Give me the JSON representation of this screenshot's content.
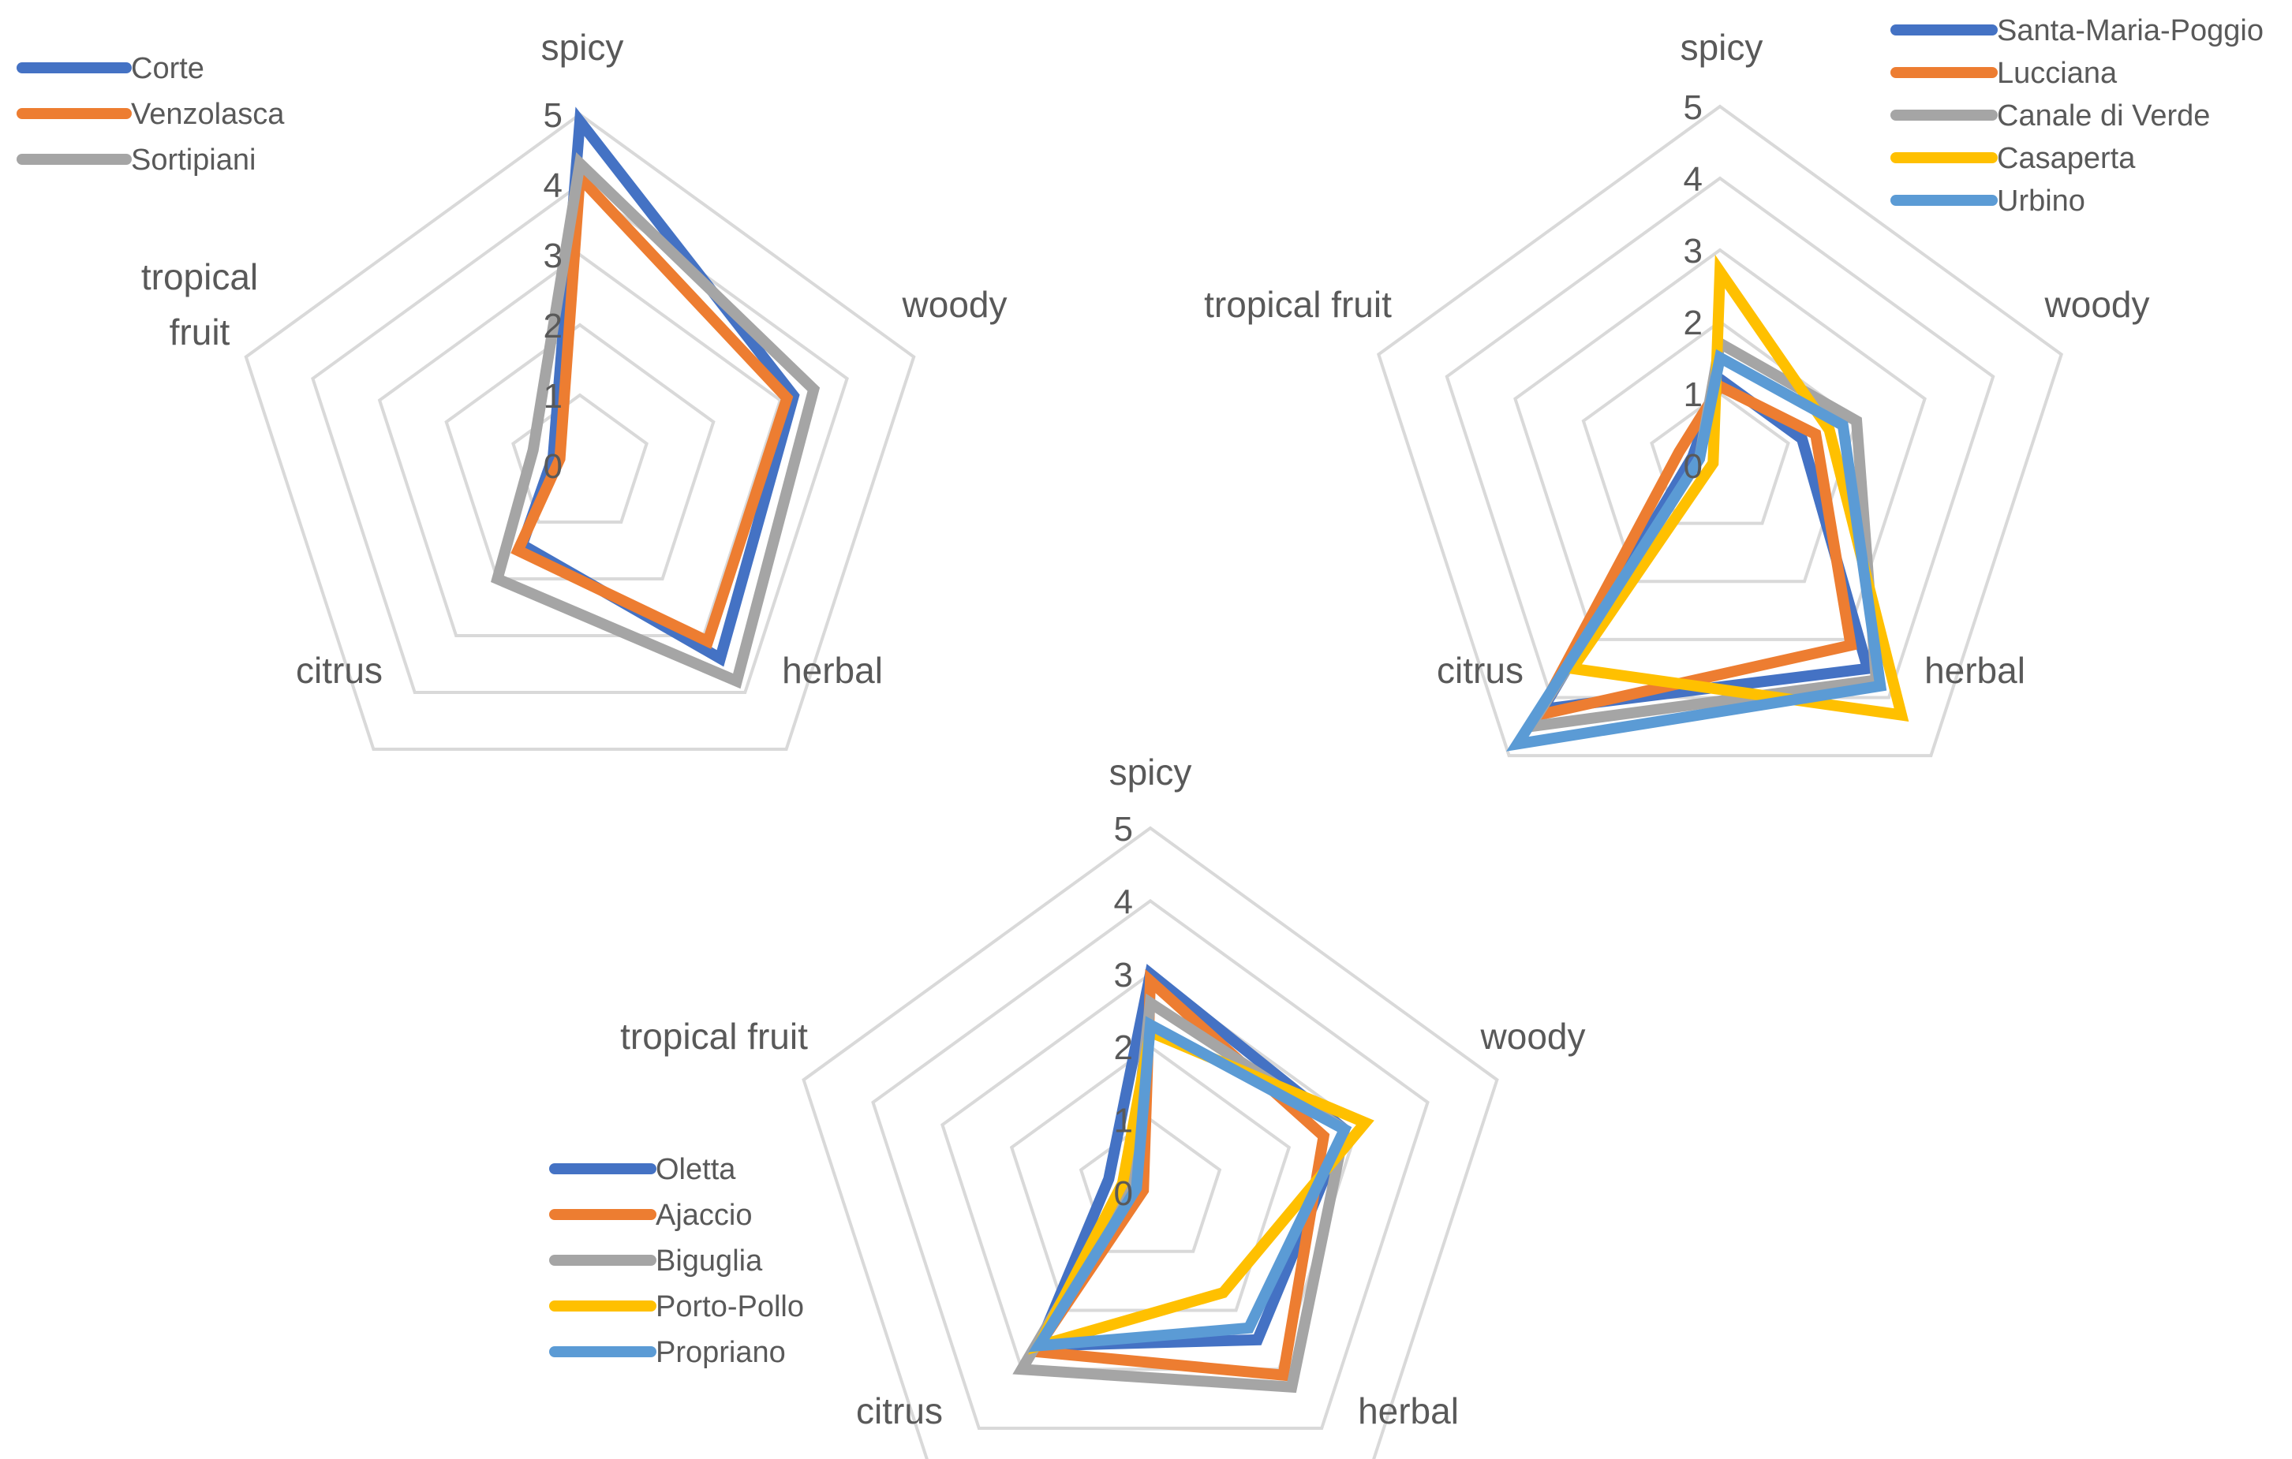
{
  "chart_data": [
    {
      "type": "radar",
      "axes": [
        "spicy",
        "woody",
        "herbal",
        "citrus",
        "tropical fruit"
      ],
      "axis_label_lines": [
        [
          "spicy"
        ],
        [
          "woody"
        ],
        [
          "herbal"
        ],
        [
          "citrus"
        ],
        [
          "tropical",
          "fruit"
        ]
      ],
      "rlim": [
        0,
        5
      ],
      "ticks": [
        "0",
        "1",
        "2",
        "3",
        "4",
        "5"
      ],
      "grid": true,
      "legend_position": "top-left",
      "series": [
        {
          "name": "Corte",
          "color": "#4472C4",
          "values": [
            4.9,
            3.2,
            3.4,
            1.4,
            0.4
          ]
        },
        {
          "name": "Venzolasca",
          "color": "#ED7D31",
          "values": [
            4.1,
            3.1,
            3.1,
            1.5,
            0.3
          ]
        },
        {
          "name": "Sortipiani",
          "color": "#A5A5A5",
          "values": [
            4.3,
            3.5,
            3.8,
            2.0,
            0.7
          ]
        }
      ]
    },
    {
      "type": "radar",
      "axes": [
        "spicy",
        "woody",
        "herbal",
        "citrus",
        "tropical fruit"
      ],
      "axis_label_lines": [
        [
          "spicy"
        ],
        [
          "woody"
        ],
        [
          "herbal"
        ],
        [
          "citrus"
        ],
        [
          "tropical fruit"
        ]
      ],
      "rlim": [
        0,
        5
      ],
      "ticks": [
        "0",
        "1",
        "2",
        "3",
        "4",
        "5"
      ],
      "grid": true,
      "legend_position": "top-right",
      "series": [
        {
          "name": "Santa-Maria-Poggio",
          "color": "#4472C4",
          "values": [
            1.2,
            1.2,
            3.5,
            4.2,
            0.4
          ]
        },
        {
          "name": "Lucciana",
          "color": "#ED7D31",
          "values": [
            1.1,
            1.4,
            3.1,
            4.3,
            0.6
          ]
        },
        {
          "name": "Canale di Verde",
          "color": "#A5A5A5",
          "values": [
            1.7,
            2.0,
            3.7,
            4.5,
            0.3
          ]
        },
        {
          "name": "Casaperta",
          "color": "#FFC000",
          "values": [
            2.7,
            1.6,
            4.3,
            3.5,
            0.1
          ]
        },
        {
          "name": "Urbino",
          "color": "#5B9BD5",
          "values": [
            1.5,
            1.8,
            3.8,
            4.8,
            0.3
          ]
        }
      ]
    },
    {
      "type": "radar",
      "axes": [
        "spicy",
        "woody",
        "herbal",
        "citrus",
        "tropical fruit"
      ],
      "axis_label_lines": [
        [
          "spicy"
        ],
        [
          "woody"
        ],
        [
          "herbal"
        ],
        [
          "citrus"
        ],
        [
          "tropical fruit"
        ]
      ],
      "rlim": [
        0,
        5
      ],
      "ticks": [
        "0",
        "1",
        "2",
        "3",
        "4",
        "5"
      ],
      "grid": true,
      "legend_position": "bottom-left",
      "series": [
        {
          "name": "Oletta",
          "color": "#4472C4",
          "values": [
            3.0,
            2.8,
            2.5,
            2.6,
            0.6
          ]
        },
        {
          "name": "Ajaccio",
          "color": "#ED7D31",
          "values": [
            2.9,
            2.5,
            3.1,
            2.7,
            0.1
          ]
        },
        {
          "name": "Biguglia",
          "color": "#A5A5A5",
          "values": [
            2.6,
            2.8,
            3.3,
            3.0,
            0.3
          ]
        },
        {
          "name": "Porto-Pollo",
          "color": "#FFC000",
          "values": [
            2.2,
            3.1,
            1.7,
            2.6,
            0.4
          ]
        },
        {
          "name": "Propriano",
          "color": "#5B9BD5",
          "values": [
            2.3,
            2.8,
            2.3,
            2.6,
            0.2
          ]
        }
      ]
    }
  ]
}
